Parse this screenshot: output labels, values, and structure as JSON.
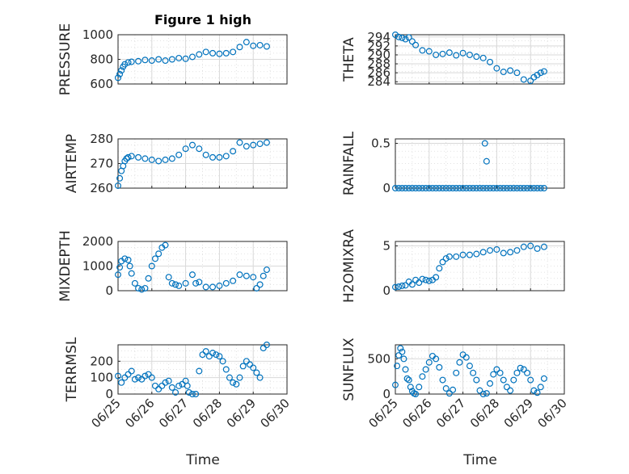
{
  "figure": {
    "title": "Figure 1 high",
    "marker_color": "#0072BD",
    "xlabel": "Time",
    "x_tick_labels": [
      "06/25",
      "06/26",
      "06/27",
      "06/28",
      "06/29",
      "06/30"
    ]
  },
  "chart_data": [
    {
      "id": "pressure",
      "type": "scatter",
      "title": "Figure 1 high",
      "ylabel": "PRESSURE",
      "xlim": [
        0,
        5
      ],
      "ylim": [
        600,
        1000
      ],
      "yticks": [
        600,
        800,
        1000
      ],
      "ytick_labels": [
        "600",
        "800",
        "1000"
      ],
      "grid": true,
      "marker": "circle",
      "color": "#0072BD",
      "x": [
        0.0,
        0.05,
        0.1,
        0.15,
        0.2,
        0.3,
        0.4,
        0.6,
        0.8,
        1.0,
        1.2,
        1.4,
        1.6,
        1.8,
        2.0,
        2.2,
        2.4,
        2.6,
        2.8,
        3.0,
        3.2,
        3.4,
        3.6,
        3.8,
        4.0,
        4.2,
        4.4
      ],
      "y": [
        650,
        680,
        710,
        740,
        760,
        775,
        780,
        785,
        795,
        790,
        800,
        790,
        800,
        810,
        805,
        820,
        840,
        860,
        850,
        845,
        850,
        860,
        900,
        940,
        910,
        915,
        905
      ]
    },
    {
      "id": "theta",
      "type": "scatter",
      "ylabel": "THETA",
      "xlim": [
        0,
        5
      ],
      "ylim": [
        283.5,
        294.5
      ],
      "yticks": [
        284,
        286,
        288,
        290,
        292,
        294
      ],
      "ytick_labels": [
        "284",
        "286",
        "288",
        "290",
        "292",
        "294"
      ],
      "grid": true,
      "marker": "circle",
      "color": "#0072BD",
      "x": [
        0.0,
        0.1,
        0.2,
        0.3,
        0.4,
        0.5,
        0.6,
        0.8,
        1.0,
        1.2,
        1.4,
        1.6,
        1.8,
        2.0,
        2.2,
        2.4,
        2.6,
        2.8,
        3.0,
        3.2,
        3.4,
        3.6,
        3.8,
        4.0,
        4.1,
        4.2,
        4.3,
        4.4
      ],
      "y": [
        294.5,
        294,
        293.8,
        293.5,
        293.9,
        293,
        292.2,
        291,
        290.8,
        290,
        290.2,
        290.5,
        289.9,
        290.4,
        290,
        289.6,
        289.3,
        288.4,
        287,
        286.2,
        286.5,
        286,
        284.5,
        284.2,
        285,
        285.5,
        286,
        286.3
      ]
    },
    {
      "id": "air_temp",
      "type": "scatter",
      "ylabel": "AIR_TEMP",
      "ylabel_display": "AIRTEMP",
      "xlim": [
        0,
        5
      ],
      "ylim": [
        260,
        280
      ],
      "yticks": [
        260,
        270,
        280
      ],
      "ytick_labels": [
        "260",
        "270",
        "280"
      ],
      "grid": true,
      "marker": "circle",
      "color": "#0072BD",
      "x": [
        0.0,
        0.05,
        0.1,
        0.15,
        0.2,
        0.25,
        0.3,
        0.4,
        0.6,
        0.8,
        1.0,
        1.2,
        1.4,
        1.6,
        1.8,
        2.0,
        2.2,
        2.4,
        2.6,
        2.8,
        3.0,
        3.2,
        3.4,
        3.6,
        3.8,
        4.0,
        4.2,
        4.4
      ],
      "y": [
        261,
        264,
        267,
        269,
        271,
        272,
        272.5,
        273,
        272.5,
        272,
        271.5,
        271,
        271.5,
        272,
        273.5,
        276,
        277.5,
        276,
        273.5,
        272.5,
        272.5,
        273,
        275,
        278.5,
        277,
        277.5,
        278,
        278.5
      ]
    },
    {
      "id": "rainfall",
      "type": "scatter",
      "ylabel": "RAINFALL",
      "xlim": [
        0,
        5
      ],
      "ylim": [
        0,
        0.55
      ],
      "yticks": [
        0,
        0.5
      ],
      "ytick_labels": [
        "0",
        "0.5"
      ],
      "grid": true,
      "marker": "circle",
      "color": "#0072BD",
      "x": [
        0.0,
        0.1,
        0.2,
        0.3,
        0.4,
        0.5,
        0.6,
        0.7,
        0.8,
        0.9,
        1.0,
        1.1,
        1.2,
        1.3,
        1.4,
        1.5,
        1.6,
        1.7,
        1.8,
        1.9,
        2.0,
        2.1,
        2.2,
        2.3,
        2.4,
        2.5,
        2.6,
        2.7,
        2.8,
        2.9,
        3.0,
        3.1,
        3.2,
        3.3,
        3.4,
        3.5,
        3.6,
        3.7,
        3.8,
        3.9,
        4.0,
        4.1,
        4.2,
        4.3,
        4.4,
        2.65,
        2.7
      ],
      "y": [
        0,
        0,
        0,
        0,
        0,
        0,
        0,
        0,
        0,
        0,
        0,
        0,
        0,
        0,
        0,
        0,
        0,
        0,
        0,
        0,
        0,
        0,
        0,
        0,
        0,
        0,
        0,
        0,
        0,
        0,
        0,
        0,
        0,
        0,
        0,
        0,
        0,
        0,
        0,
        0,
        0,
        0,
        0,
        0,
        0,
        0.5,
        0.3
      ]
    },
    {
      "id": "mixdepth",
      "type": "scatter",
      "ylabel": "MIXDEPTH",
      "xlim": [
        0,
        5
      ],
      "ylim": [
        0,
        2000
      ],
      "yticks": [
        0,
        1000,
        2000
      ],
      "ytick_labels": [
        "0",
        "1000",
        "2000"
      ],
      "grid": true,
      "marker": "circle",
      "color": "#0072BD",
      "x": [
        0.0,
        0.05,
        0.1,
        0.2,
        0.3,
        0.35,
        0.4,
        0.5,
        0.6,
        0.7,
        0.8,
        0.9,
        1.0,
        1.1,
        1.2,
        1.3,
        1.4,
        1.5,
        1.6,
        1.7,
        1.8,
        2.0,
        2.2,
        2.3,
        2.4,
        2.6,
        2.8,
        3.0,
        3.2,
        3.4,
        3.6,
        3.8,
        4.0,
        4.1,
        4.2,
        4.3,
        4.4
      ],
      "y": [
        650,
        950,
        1200,
        1300,
        1250,
        1000,
        700,
        300,
        100,
        50,
        100,
        500,
        1000,
        1300,
        1500,
        1750,
        1850,
        550,
        300,
        250,
        200,
        300,
        650,
        300,
        350,
        150,
        150,
        200,
        300,
        400,
        650,
        600,
        550,
        100,
        250,
        600,
        850
      ]
    },
    {
      "id": "h2omixra",
      "type": "scatter",
      "ylabel": "H2OMIXRA",
      "xlim": [
        0,
        5
      ],
      "ylim": [
        0,
        5.5
      ],
      "yticks": [
        0,
        5
      ],
      "ytick_labels": [
        "0",
        "5"
      ],
      "grid": true,
      "marker": "circle",
      "color": "#0072BD",
      "x": [
        0.0,
        0.1,
        0.2,
        0.3,
        0.4,
        0.5,
        0.6,
        0.7,
        0.8,
        0.9,
        1.0,
        1.1,
        1.2,
        1.3,
        1.4,
        1.5,
        1.6,
        1.8,
        2.0,
        2.2,
        2.4,
        2.6,
        2.8,
        3.0,
        3.2,
        3.4,
        3.6,
        3.8,
        4.0,
        4.2,
        4.4
      ],
      "y": [
        0.4,
        0.45,
        0.55,
        0.6,
        1.0,
        0.7,
        1.2,
        0.9,
        1.3,
        1.2,
        1.1,
        1.2,
        1.5,
        2.5,
        3.2,
        3.6,
        3.8,
        3.8,
        4.0,
        4.0,
        4.1,
        4.3,
        4.5,
        4.6,
        4.2,
        4.3,
        4.5,
        4.9,
        5.0,
        4.7,
        4.9
      ]
    },
    {
      "id": "terr_msl",
      "type": "scatter",
      "ylabel": "TERR_MSL",
      "ylabel_display": "TERRMSL",
      "xlim": [
        0,
        5
      ],
      "ylim": [
        0,
        300
      ],
      "yticks": [
        0,
        100,
        200
      ],
      "ytick_labels": [
        "0",
        "100",
        "200"
      ],
      "grid": true,
      "marker": "circle",
      "color": "#0072BD",
      "x": [
        0.0,
        0.1,
        0.2,
        0.3,
        0.4,
        0.5,
        0.6,
        0.7,
        0.8,
        0.9,
        1.0,
        1.1,
        1.2,
        1.3,
        1.4,
        1.5,
        1.6,
        1.7,
        1.8,
        1.9,
        2.0,
        2.05,
        2.1,
        2.2,
        2.3,
        2.4,
        2.5,
        2.6,
        2.7,
        2.8,
        2.9,
        3.0,
        3.1,
        3.2,
        3.3,
        3.4,
        3.5,
        3.6,
        3.7,
        3.8,
        3.9,
        4.0,
        4.1,
        4.2,
        4.3,
        4.4
      ],
      "y": [
        110,
        70,
        100,
        120,
        140,
        90,
        100,
        90,
        110,
        120,
        100,
        50,
        30,
        50,
        70,
        80,
        40,
        10,
        50,
        60,
        80,
        50,
        10,
        0,
        0,
        140,
        240,
        260,
        230,
        250,
        240,
        230,
        200,
        150,
        100,
        70,
        60,
        100,
        170,
        200,
        180,
        160,
        130,
        100,
        280,
        300
      ]
    },
    {
      "id": "sun_flux",
      "type": "scatter",
      "ylabel": "SUN_FLUX",
      "ylabel_display": "SUNFLUX",
      "xlim": [
        0,
        5
      ],
      "ylim": [
        0,
        700
      ],
      "yticks": [
        0,
        500
      ],
      "ytick_labels": [
        "0",
        "500"
      ],
      "grid": true,
      "marker": "circle",
      "color": "#0072BD",
      "x": [
        0.0,
        0.05,
        0.1,
        0.15,
        0.2,
        0.25,
        0.3,
        0.35,
        0.4,
        0.45,
        0.5,
        0.55,
        0.6,
        0.7,
        0.8,
        0.9,
        1.0,
        1.1,
        1.2,
        1.3,
        1.4,
        1.5,
        1.6,
        1.7,
        1.8,
        1.9,
        2.0,
        2.1,
        2.2,
        2.3,
        2.4,
        2.5,
        2.6,
        2.7,
        2.8,
        2.9,
        3.0,
        3.1,
        3.2,
        3.3,
        3.4,
        3.5,
        3.6,
        3.7,
        3.8,
        3.9,
        4.0,
        4.1,
        4.2,
        4.3,
        4.4
      ],
      "y": [
        130,
        400,
        550,
        650,
        600,
        500,
        350,
        220,
        200,
        100,
        40,
        10,
        0,
        100,
        250,
        350,
        450,
        540,
        500,
        380,
        200,
        80,
        10,
        60,
        300,
        450,
        560,
        520,
        400,
        300,
        200,
        50,
        0,
        10,
        150,
        280,
        350,
        300,
        200,
        100,
        50,
        200,
        300,
        370,
        350,
        300,
        200,
        50,
        20,
        100,
        220
      ]
    }
  ]
}
